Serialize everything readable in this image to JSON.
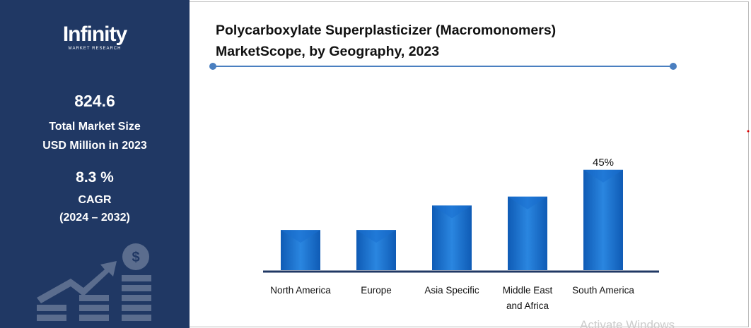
{
  "logo": {
    "name": "Infinity",
    "tagline": "MARKET RESEARCH"
  },
  "stats": {
    "market_size": 824.6,
    "market_size_label": [
      "Total Market Size",
      "USD Million in 2023"
    ],
    "cagr": "8.3 %",
    "cagr_label": "CAGR",
    "period": "(2024 – 2032)"
  },
  "chart_data": {
    "type": "bar",
    "title": [
      "Polycarboxylate Superplasticizer (Macromonomers)",
      "MarketScope, by Geography, 2023"
    ],
    "categories": [
      "North America",
      "Europe",
      "Asia Specific",
      "Middle East and Africa",
      "South America"
    ],
    "values": [
      18,
      18,
      29,
      33,
      45
    ],
    "value_labels": [
      null,
      null,
      null,
      null,
      "45%"
    ],
    "color": "#1a6fd0"
  },
  "watermark": "Activate Windows"
}
